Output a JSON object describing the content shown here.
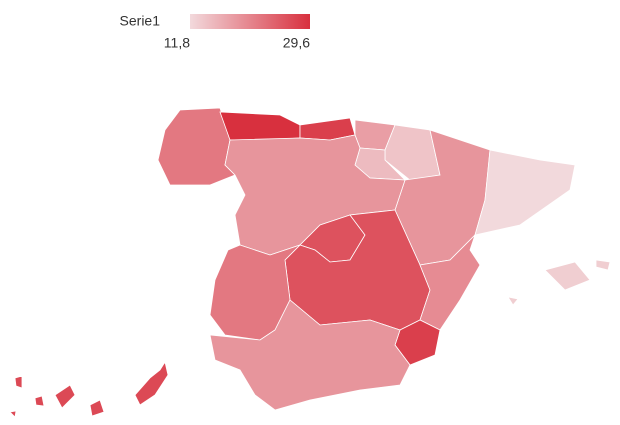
{
  "chart_data": {
    "type": "map",
    "legend_title": "Serie1",
    "color_min": "#f2d9dc",
    "color_max": "#d8303e",
    "colorbar_ticks": [
      {
        "value": 11.8,
        "label": "11,8"
      },
      {
        "value": 29.6,
        "label": "29,6"
      }
    ],
    "categories": [
      null,
      null,
      null,
      null,
      null,
      null,
      null,
      null,
      null,
      null,
      null,
      null,
      null,
      null,
      null,
      null,
      null
    ],
    "values": [
      22,
      29.6,
      28,
      18,
      14,
      15,
      19,
      11.8,
      19,
      26,
      26,
      22,
      20,
      28,
      19,
      13,
      27
    ]
  }
}
